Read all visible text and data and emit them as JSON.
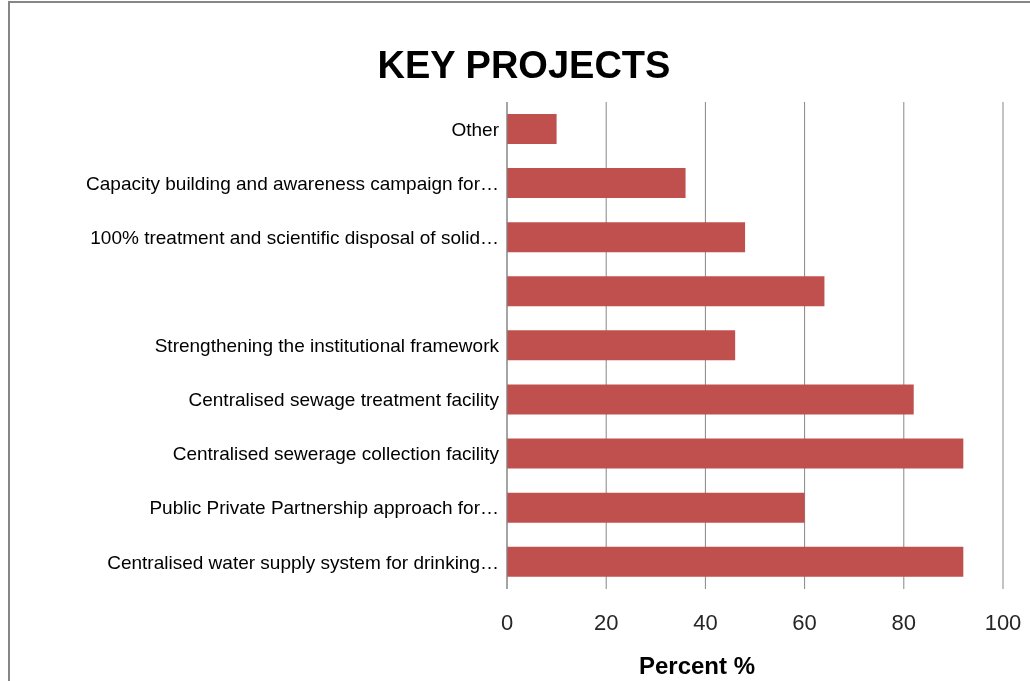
{
  "chart_data": {
    "type": "bar",
    "orientation": "horizontal",
    "title": "KEY PROJECTS",
    "xlabel": "Percent %",
    "categories": [
      "Other",
      "Capacity building and awareness campaign for…",
      "100% treatment and scientific disposal of solid…",
      null,
      "Strengthening the institutional framework",
      "Centralised sewage treatment facility",
      "Centralised sewerage collection facility",
      "Public Private Partnership approach for…",
      "Centralised water supply system for drinking…"
    ],
    "values": [
      10,
      36,
      48,
      64,
      46,
      82,
      92,
      60,
      92
    ],
    "color": "#c0504d",
    "xlim": [
      0,
      100
    ],
    "xticks": [
      0,
      20,
      40,
      60,
      80,
      100
    ],
    "grid": "x"
  }
}
